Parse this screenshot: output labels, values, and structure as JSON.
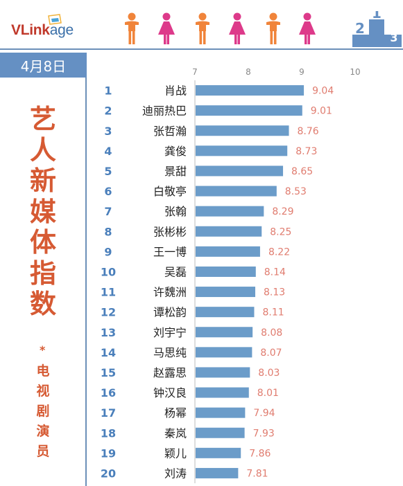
{
  "header": {
    "logo_text_1": "VLink",
    "logo_text_2": "age",
    "people_icons": [
      "man-icon",
      "woman-icon",
      "man-icon",
      "woman-icon",
      "man-icon",
      "woman-icon"
    ],
    "podium_labels": [
      "2",
      "1",
      "3"
    ]
  },
  "sidebar": {
    "date": "4月8日",
    "title_chars": [
      "艺",
      "人",
      "新",
      "媒",
      "体",
      "指",
      "数"
    ],
    "star": "*",
    "subtitle_chars": [
      "电",
      "视",
      "剧",
      "演",
      "员"
    ]
  },
  "colors": {
    "bar": "#6b9cc9",
    "value_label": "#e07c6f",
    "rank": "#4a7fbb",
    "title": "#d65a33",
    "man": "#f0843a",
    "woman": "#dd3a8a",
    "header_blue": "#6590c3"
  },
  "chart_data": {
    "type": "bar",
    "orientation": "horizontal",
    "xlim": [
      7,
      10
    ],
    "xticks": [
      7,
      8,
      9,
      10
    ],
    "grid": false,
    "ranks": [
      "1",
      "2",
      "3",
      "4",
      "5",
      "6",
      "7",
      "8",
      "9",
      "10",
      "11",
      "12",
      "13",
      "14",
      "15",
      "16",
      "17",
      "18",
      "19",
      "20"
    ],
    "categories": [
      "肖战",
      "迪丽热巴",
      "张哲瀚",
      "龚俊",
      "景甜",
      "白敬亭",
      "张翰",
      "张彬彬",
      "王一博",
      "吴磊",
      "许魏洲",
      "谭松韵",
      "刘宇宁",
      "马思纯",
      "赵露思",
      "钟汉良",
      "杨幂",
      "秦岚",
      "颖儿",
      "刘涛"
    ],
    "values": [
      9.04,
      9.01,
      8.76,
      8.73,
      8.65,
      8.53,
      8.29,
      8.25,
      8.22,
      8.14,
      8.13,
      8.11,
      8.08,
      8.07,
      8.03,
      8.01,
      7.94,
      7.93,
      7.86,
      7.81
    ],
    "value_labels": [
      "9.04",
      "9.01",
      "8.76",
      "8.73",
      "8.65",
      "8.53",
      "8.29",
      "8.25",
      "8.22",
      "8.14",
      "8.13",
      "8.11",
      "8.08",
      "8.07",
      "8.03",
      "8.01",
      "7.94",
      "7.93",
      "7.86",
      "7.81"
    ]
  }
}
